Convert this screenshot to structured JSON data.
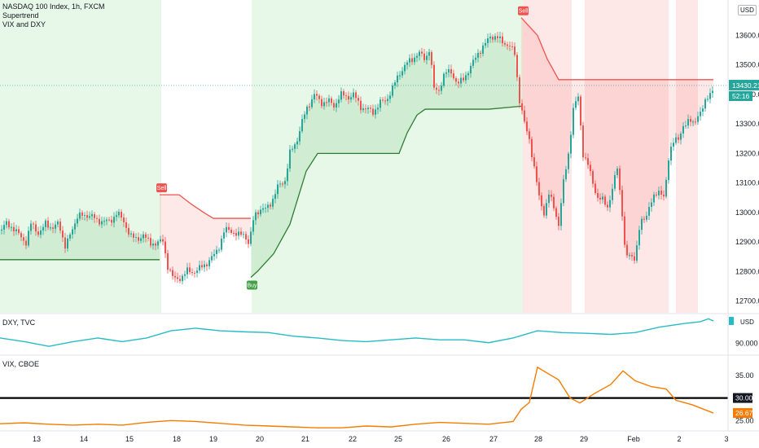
{
  "main_legend": {
    "symbol": "NASDAQ 100 Index, 1h, FXCM",
    "indicator1": "Supertrend",
    "indicator2": "VIX and DXY"
  },
  "currency_badge": "USD",
  "price_tag": {
    "value": "13430.21",
    "countdown": "52:16"
  },
  "dxy_legend": "DXY, TVC",
  "vix_legend": "VIX, CBOE",
  "vix_level_tag": "30.00",
  "vix_last_tag": "26.67",
  "dxy_scale_value": "90.000",
  "colors": {
    "up": "#26a69a",
    "down": "#ef5350",
    "supertrend_up": "#2e7d32",
    "supertrend_down": "#ef5350",
    "dxy": "#26bcc6",
    "vix": "#f57c00",
    "green_zone": "#e8f8e8",
    "red_zone": "#fde7e7"
  },
  "chart_data": [
    {
      "type": "candlestick",
      "title": "NASDAQ 100 Index, 1h, FXCM",
      "x_ticks": [
        "13",
        "14",
        "15",
        "18",
        "19",
        "20",
        "21",
        "22",
        "25",
        "26",
        "27",
        "28",
        "29",
        "Feb",
        "2",
        "3"
      ],
      "y_ticks": [
        12700,
        12800,
        12900,
        13000,
        13100,
        13200,
        13300,
        13400,
        13500,
        13600
      ],
      "ylim": [
        12660,
        13720
      ],
      "close_path": [
        [
          0,
          12940
        ],
        [
          8,
          12960
        ],
        [
          16,
          12950
        ],
        [
          24,
          12920
        ],
        [
          32,
          12900
        ],
        [
          38,
          12960
        ],
        [
          48,
          12930
        ],
        [
          56,
          12960
        ],
        [
          64,
          12950
        ],
        [
          72,
          12960
        ],
        [
          80,
          12890
        ],
        [
          88,
          12930
        ],
        [
          96,
          13000
        ],
        [
          104,
          12980
        ],
        [
          112,
          13000
        ],
        [
          120,
          12960
        ],
        [
          128,
          12980
        ],
        [
          136,
          12960
        ],
        [
          144,
          13010
        ],
        [
          152,
          12960
        ],
        [
          160,
          12930
        ],
        [
          168,
          12900
        ],
        [
          176,
          12930
        ],
        [
          184,
          12890
        ],
        [
          192,
          12900
        ],
        [
          200,
          12900
        ],
        [
          206,
          12820
        ],
        [
          214,
          12770
        ],
        [
          222,
          12780
        ],
        [
          230,
          12800
        ],
        [
          238,
          12800
        ],
        [
          246,
          12810
        ],
        [
          254,
          12830
        ],
        [
          262,
          12850
        ],
        [
          268,
          12880
        ],
        [
          276,
          12940
        ],
        [
          284,
          12940
        ],
        [
          292,
          12920
        ],
        [
          300,
          12930
        ],
        [
          306,
          12890
        ],
        [
          312,
          12990
        ],
        [
          318,
          13010
        ],
        [
          326,
          13010
        ],
        [
          334,
          13040
        ],
        [
          342,
          13090
        ],
        [
          350,
          13110
        ],
        [
          356,
          13200
        ],
        [
          364,
          13240
        ],
        [
          370,
          13300
        ],
        [
          378,
          13360
        ],
        [
          386,
          13400
        ],
        [
          394,
          13370
        ],
        [
          402,
          13380
        ],
        [
          410,
          13360
        ],
        [
          418,
          13400
        ],
        [
          426,
          13390
        ],
        [
          434,
          13400
        ],
        [
          442,
          13360
        ],
        [
          450,
          13350
        ],
        [
          458,
          13340
        ],
        [
          466,
          13370
        ],
        [
          474,
          13380
        ],
        [
          482,
          13420
        ],
        [
          490,
          13470
        ],
        [
          498,
          13500
        ],
        [
          506,
          13520
        ],
        [
          514,
          13540
        ],
        [
          522,
          13520
        ],
        [
          528,
          13560
        ],
        [
          532,
          13420
        ],
        [
          538,
          13410
        ],
        [
          546,
          13470
        ],
        [
          554,
          13480
        ],
        [
          562,
          13430
        ],
        [
          570,
          13460
        ],
        [
          578,
          13490
        ],
        [
          586,
          13540
        ],
        [
          594,
          13560
        ],
        [
          602,
          13600
        ],
        [
          610,
          13590
        ],
        [
          618,
          13580
        ],
        [
          626,
          13560
        ],
        [
          632,
          13540
        ],
        [
          638,
          13380
        ],
        [
          644,
          13300
        ],
        [
          650,
          13250
        ],
        [
          656,
          13150
        ],
        [
          662,
          13050
        ],
        [
          668,
          13000
        ],
        [
          674,
          13060
        ],
        [
          680,
          13020
        ],
        [
          686,
          12960
        ],
        [
          692,
          13100
        ],
        [
          698,
          13200
        ],
        [
          704,
          13350
        ],
        [
          710,
          13390
        ],
        [
          716,
          13200
        ],
        [
          722,
          13160
        ],
        [
          728,
          13100
        ],
        [
          734,
          13050
        ],
        [
          740,
          13040
        ],
        [
          746,
          13020
        ],
        [
          752,
          13080
        ],
        [
          758,
          13150
        ],
        [
          764,
          13000
        ],
        [
          768,
          12850
        ],
        [
          774,
          12850
        ],
        [
          780,
          12850
        ],
        [
          786,
          12960
        ],
        [
          792,
          12980
        ],
        [
          798,
          13030
        ],
        [
          804,
          13050
        ],
        [
          810,
          13080
        ],
        [
          816,
          13050
        ],
        [
          822,
          13200
        ],
        [
          828,
          13260
        ],
        [
          834,
          13240
        ],
        [
          840,
          13300
        ],
        [
          846,
          13320
        ],
        [
          852,
          13290
        ],
        [
          858,
          13340
        ],
        [
          864,
          13360
        ],
        [
          870,
          13390
        ],
        [
          876,
          13430
        ]
      ],
      "supertrend": [
        {
          "trend": "up",
          "points": [
            [
              0,
              12840
            ],
            [
              196,
              12840
            ]
          ]
        },
        {
          "trend": "down",
          "points": [
            [
              196,
              13060
            ],
            [
              220,
              13060
            ],
            [
              234,
              13030
            ],
            [
              250,
              13000
            ],
            [
              262,
              12980
            ],
            [
              308,
              12980
            ]
          ]
        },
        {
          "trend": "up",
          "points": [
            [
              308,
              12780
            ],
            [
              316,
              12800
            ],
            [
              326,
              12830
            ],
            [
              336,
              12860
            ],
            [
              346,
              12910
            ],
            [
              356,
              12960
            ],
            [
              366,
              13050
            ],
            [
              376,
              13140
            ],
            [
              390,
              13200
            ],
            [
              420,
              13200
            ],
            [
              490,
              13200
            ],
            [
              500,
              13270
            ],
            [
              512,
              13330
            ],
            [
              522,
              13350
            ],
            [
              560,
              13350
            ],
            [
              600,
              13350
            ],
            [
              640,
              13360
            ]
          ]
        },
        {
          "trend": "down",
          "points": [
            [
              640,
              13660
            ],
            [
              650,
              13630
            ],
            [
              660,
              13600
            ],
            [
              672,
              13520
            ],
            [
              686,
              13450
            ],
            [
              700,
              13450
            ],
            [
              780,
              13450
            ],
            [
              876,
              13450
            ]
          ]
        }
      ],
      "signals": [
        {
          "label": "Sell",
          "x": 198
        },
        {
          "label": "Buy",
          "x": 309
        },
        {
          "label": "Sell",
          "x": 642
        }
      ],
      "zones": [
        {
          "color": "green",
          "x": [
            0,
            198
          ]
        },
        {
          "color": "green",
          "x": [
            309,
            642
          ]
        },
        {
          "color": "red",
          "x": [
            642,
            656
          ]
        },
        {
          "color": "red",
          "x": [
            656,
            702
          ]
        },
        {
          "color": "red",
          "x": [
            718,
            821
          ]
        },
        {
          "color": "red",
          "x": [
            830,
            857
          ]
        }
      ],
      "last_value": 13430.21
    },
    {
      "type": "line",
      "title": "DXY, TVC",
      "series_name": "DXY, TVC",
      "y_ticks": [
        90.0
      ],
      "ylim": [
        89.7,
        90.8
      ],
      "points": [
        [
          0,
          90.15
        ],
        [
          30,
          90.05
        ],
        [
          60,
          89.92
        ],
        [
          90,
          90.05
        ],
        [
          120,
          90.15
        ],
        [
          150,
          90.05
        ],
        [
          180,
          90.15
        ],
        [
          210,
          90.35
        ],
        [
          240,
          90.42
        ],
        [
          270,
          90.35
        ],
        [
          300,
          90.32
        ],
        [
          330,
          90.3
        ],
        [
          360,
          90.2
        ],
        [
          390,
          90.15
        ],
        [
          420,
          90.08
        ],
        [
          450,
          90.05
        ],
        [
          480,
          90.1
        ],
        [
          510,
          90.15
        ],
        [
          540,
          90.1
        ],
        [
          570,
          90.1
        ],
        [
          600,
          90.02
        ],
        [
          630,
          90.15
        ],
        [
          660,
          90.35
        ],
        [
          690,
          90.3
        ],
        [
          720,
          90.28
        ],
        [
          750,
          90.25
        ],
        [
          780,
          90.3
        ],
        [
          810,
          90.45
        ],
        [
          840,
          90.55
        ],
        [
          860,
          90.6
        ],
        [
          870,
          90.68
        ],
        [
          876,
          90.62
        ]
      ]
    },
    {
      "type": "line",
      "title": "VIX, CBOE",
      "series_name": "VIX, CBOE",
      "y_ticks": [
        25.0,
        30.0,
        35.0
      ],
      "ylim": [
        22.9,
        39.3
      ],
      "hline": 30.0,
      "points": [
        [
          0,
          24.3
        ],
        [
          30,
          24.5
        ],
        [
          60,
          24.2
        ],
        [
          90,
          24.0
        ],
        [
          120,
          24.2
        ],
        [
          150,
          24.0
        ],
        [
          180,
          24.6
        ],
        [
          210,
          25.0
        ],
        [
          240,
          24.8
        ],
        [
          270,
          24.4
        ],
        [
          300,
          24.0
        ],
        [
          330,
          23.8
        ],
        [
          360,
          23.6
        ],
        [
          390,
          23.4
        ],
        [
          420,
          23.4
        ],
        [
          450,
          23.8
        ],
        [
          480,
          23.6
        ],
        [
          510,
          24.2
        ],
        [
          540,
          24.6
        ],
        [
          570,
          24.4
        ],
        [
          600,
          24.2
        ],
        [
          630,
          24.8
        ],
        [
          640,
          27.5
        ],
        [
          650,
          29.0
        ],
        [
          660,
          36.8
        ],
        [
          672,
          35.5
        ],
        [
          686,
          34.0
        ],
        [
          700,
          30.0
        ],
        [
          712,
          28.9
        ],
        [
          730,
          31.0
        ],
        [
          750,
          33.0
        ],
        [
          765,
          36.0
        ],
        [
          780,
          33.8
        ],
        [
          800,
          32.5
        ],
        [
          818,
          32.0
        ],
        [
          830,
          29.5
        ],
        [
          850,
          28.5
        ],
        [
          876,
          26.67
        ]
      ],
      "last_value": 26.67
    }
  ]
}
